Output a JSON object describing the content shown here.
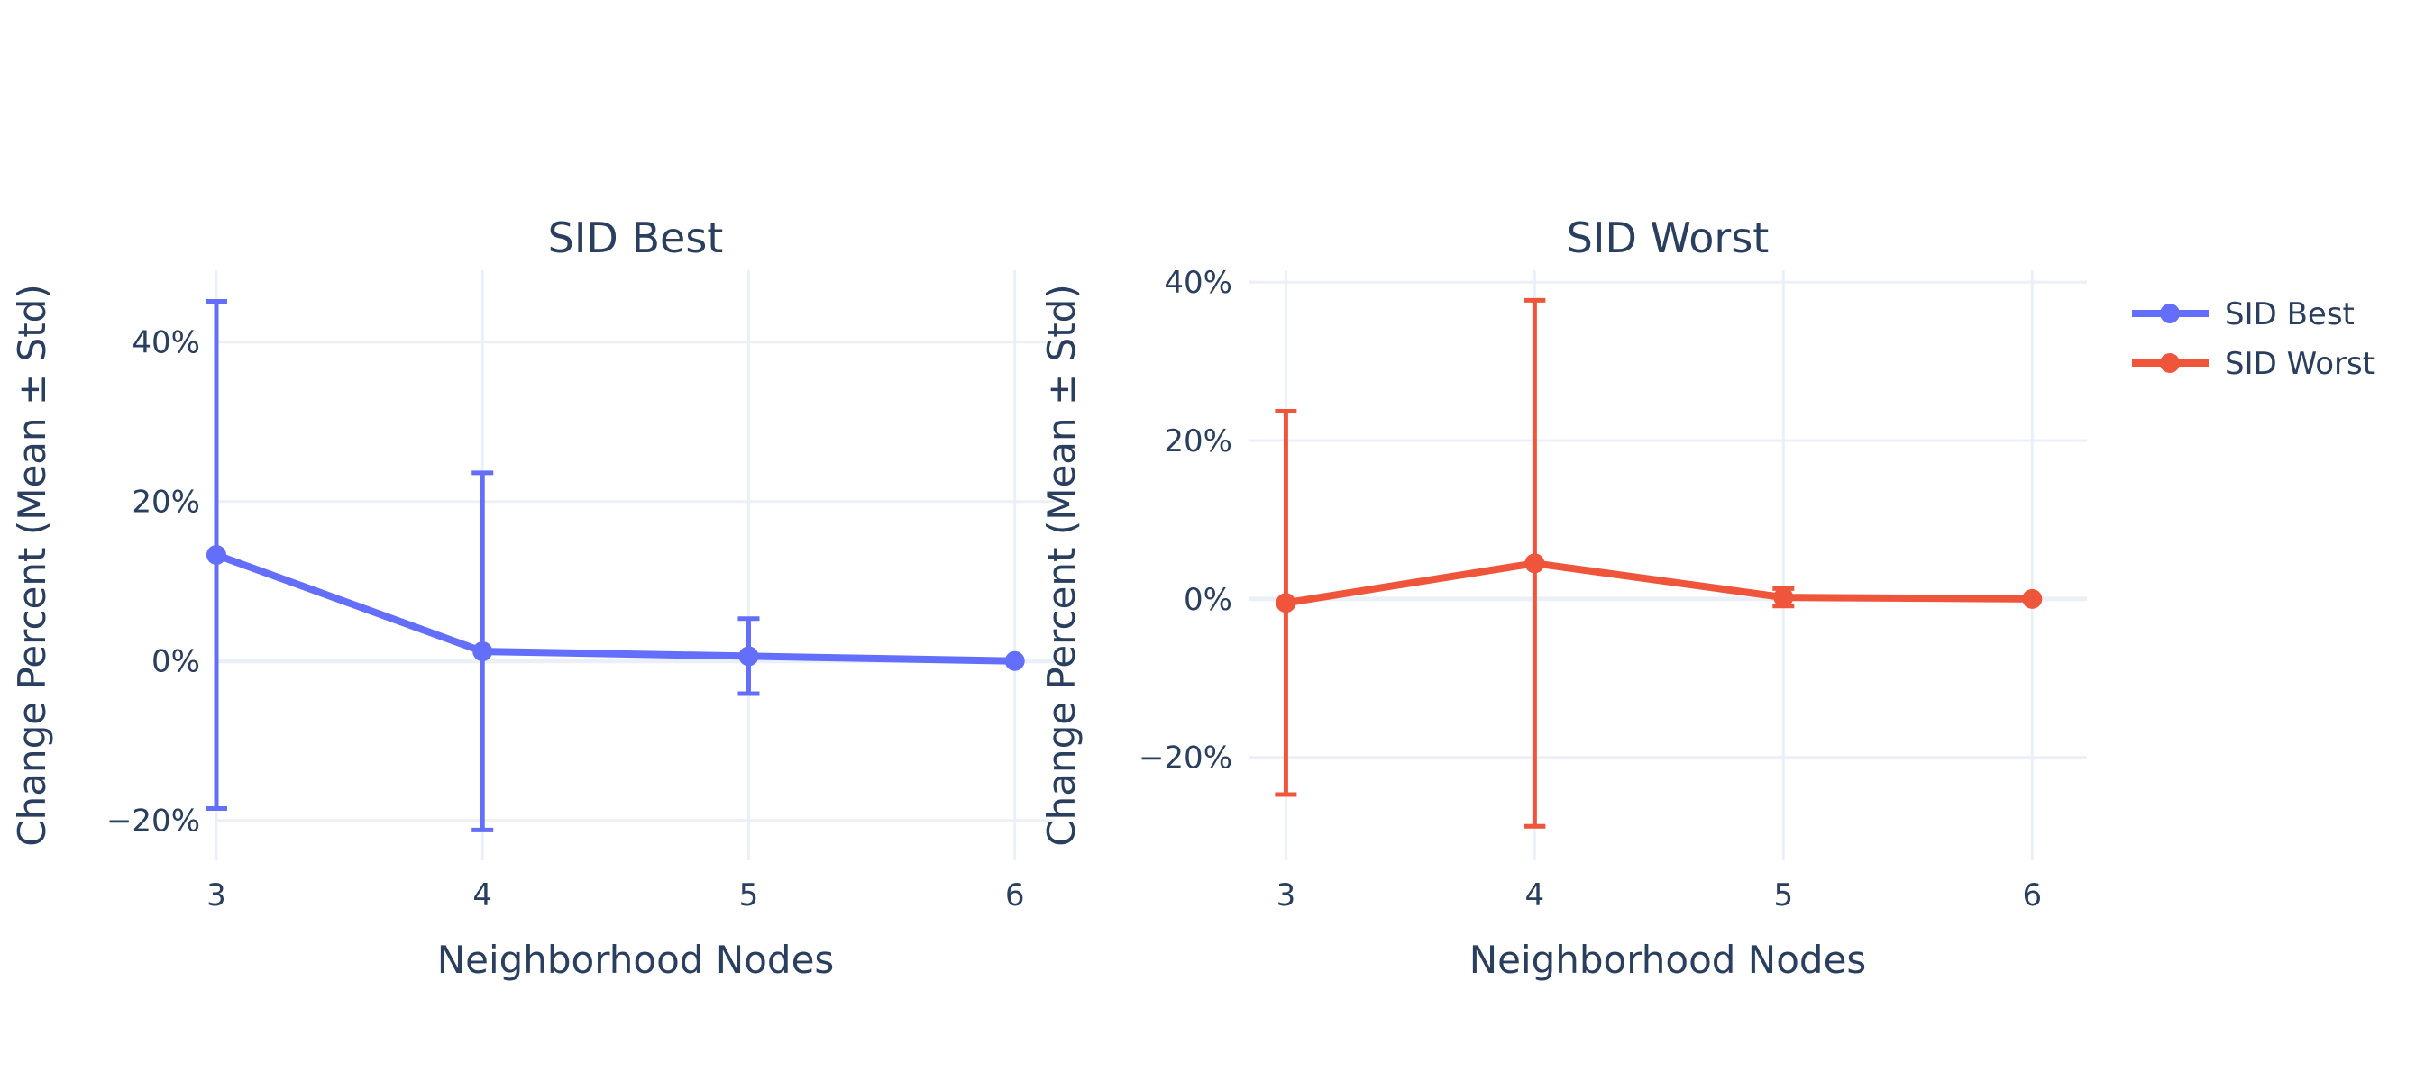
{
  "legend": [
    {
      "name": "SID Best",
      "color": "#636efa"
    },
    {
      "name": "SID Worst",
      "color": "#ef553b"
    }
  ],
  "chart_data": [
    {
      "type": "line",
      "title": "SID Best",
      "xlabel": "Neighborhood Nodes",
      "ylabel": "Change Percent (Mean ± Std)",
      "x": [
        3,
        4,
        5,
        6
      ],
      "x_ticks": [
        "3",
        "4",
        "5",
        "6"
      ],
      "xlim": [
        3,
        6.15
      ],
      "ylim": [
        -25,
        49
      ],
      "y_ticks": [
        -20,
        0,
        20,
        40
      ],
      "y_tick_labels": [
        "−20%",
        "0%",
        "20%",
        "40%"
      ],
      "grid": true,
      "series": [
        {
          "name": "SID Best",
          "color": "#636efa",
          "values": [
            13.3,
            1.2,
            0.6,
            0
          ],
          "error": [
            31.8,
            22.4,
            4.7,
            0
          ]
        }
      ]
    },
    {
      "type": "line",
      "title": "SID Worst",
      "xlabel": "Neighborhood Nodes",
      "ylabel": "Change Percent (Mean ± Std)",
      "x": [
        3,
        4,
        5,
        6
      ],
      "x_ticks": [
        "3",
        "4",
        "5",
        "6"
      ],
      "xlim": [
        2.85,
        6.22
      ],
      "ylim": [
        -33,
        41.5
      ],
      "y_ticks": [
        -20,
        0,
        20,
        40
      ],
      "y_tick_labels": [
        "−20%",
        "0%",
        "20%",
        "40%"
      ],
      "grid": true,
      "series": [
        {
          "name": "SID Worst",
          "color": "#ef553b",
          "values": [
            -0.5,
            4.5,
            0.2,
            0
          ],
          "error": [
            24.2,
            33.2,
            1.1,
            0
          ]
        }
      ]
    }
  ],
  "legend_position": "top-right"
}
